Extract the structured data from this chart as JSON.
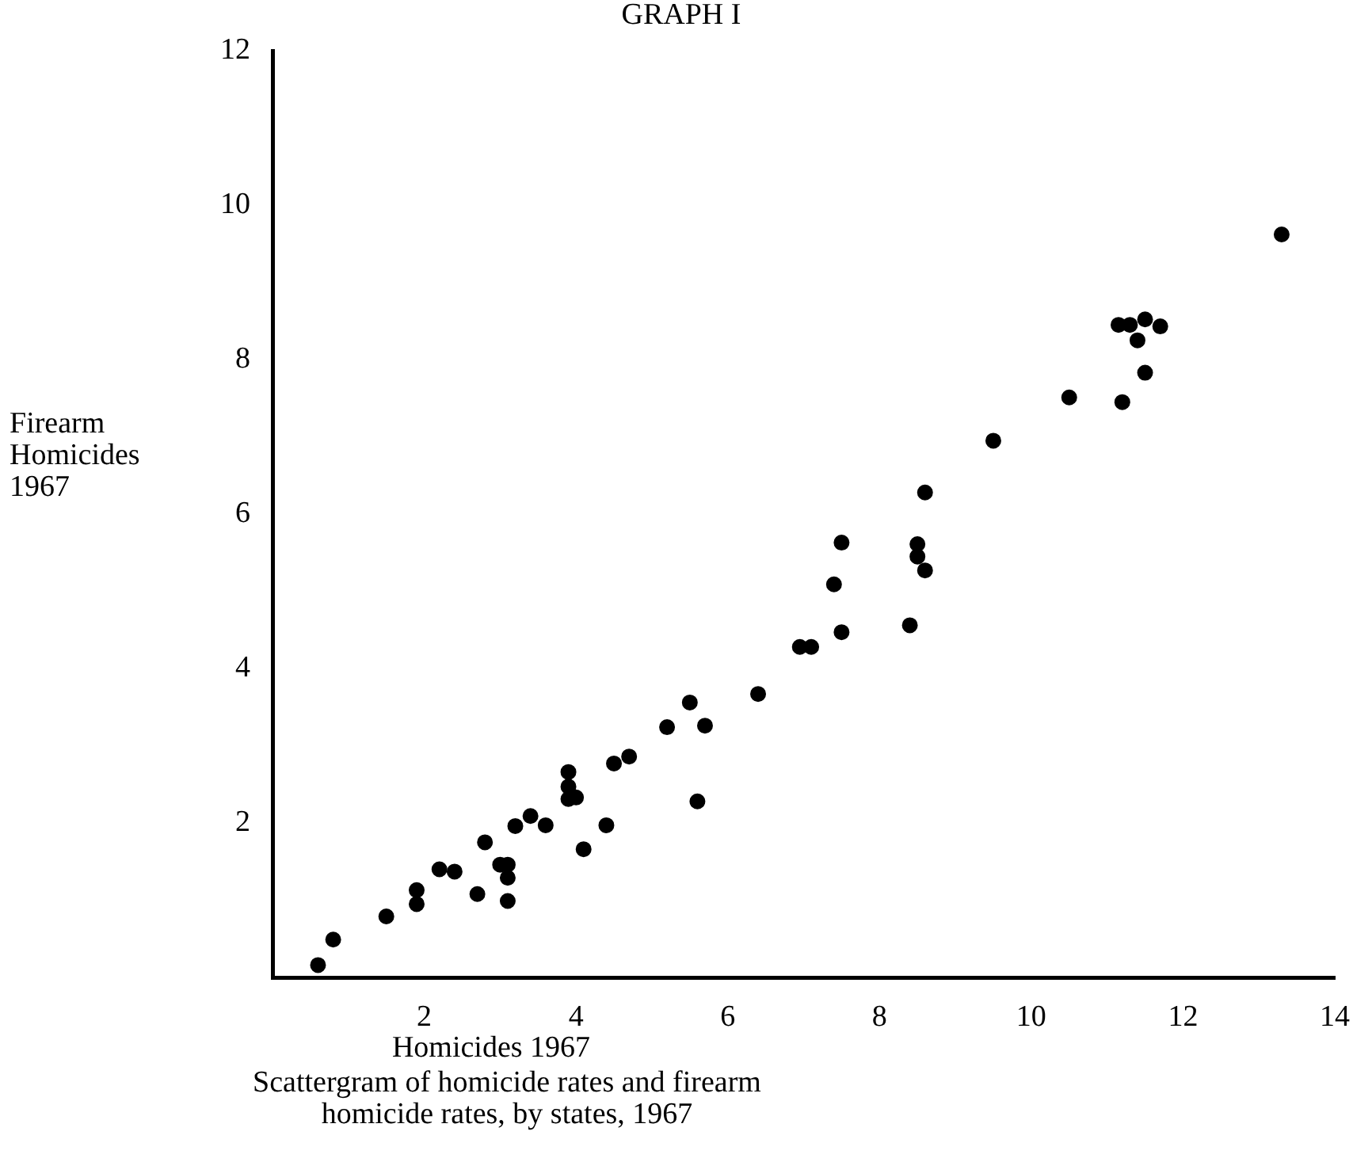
{
  "chart_data": {
    "type": "scatter",
    "title": "GRAPH I",
    "xlabel": "Homicides 1967",
    "ylabel": "Firearm Homicides 1967",
    "annotations": [
      "Scattergram of homicide rates and firearm homicide rates, by states, 1967"
    ],
    "x": [
      0.6,
      0.8,
      1.5,
      1.9,
      1.9,
      2.2,
      2.4,
      2.7,
      2.8,
      3.0,
      3.1,
      3.1,
      3.1,
      3.2,
      3.4,
      3.6,
      3.9,
      3.9,
      3.9,
      4.0,
      4.1,
      4.4,
      4.5,
      4.7,
      5.2,
      5.5,
      5.7,
      5.6,
      6.4,
      6.95,
      7.1,
      7.5,
      7.4,
      7.5,
      8.4,
      8.5,
      8.5,
      8.6,
      8.6,
      9.5,
      10.5,
      11.2,
      11.5,
      11.4,
      11.15,
      11.3,
      11.5,
      11.7,
      13.3
    ],
    "values": [
      0.16,
      0.49,
      0.79,
      1.13,
      0.95,
      1.4,
      1.37,
      1.08,
      1.75,
      1.46,
      1.46,
      1.29,
      0.99,
      1.96,
      2.09,
      1.97,
      2.66,
      2.47,
      2.31,
      2.33,
      1.66,
      1.97,
      2.77,
      2.86,
      3.24,
      3.56,
      3.26,
      2.28,
      3.67,
      4.28,
      4.28,
      4.47,
      5.09,
      5.63,
      4.56,
      5.61,
      5.45,
      5.27,
      6.28,
      6.95,
      7.51,
      7.45,
      7.83,
      8.25,
      8.45,
      8.45,
      8.52,
      8.43,
      9.62
    ],
    "color": "#000000",
    "marker": "circle",
    "grid": false,
    "legend": false,
    "xlim": [
      0,
      14
    ],
    "xticks": [
      2,
      4,
      6,
      8,
      10,
      12,
      14
    ],
    "ylim": [
      0,
      12
    ],
    "yticks": [
      2,
      4,
      6,
      8,
      10,
      12
    ]
  }
}
